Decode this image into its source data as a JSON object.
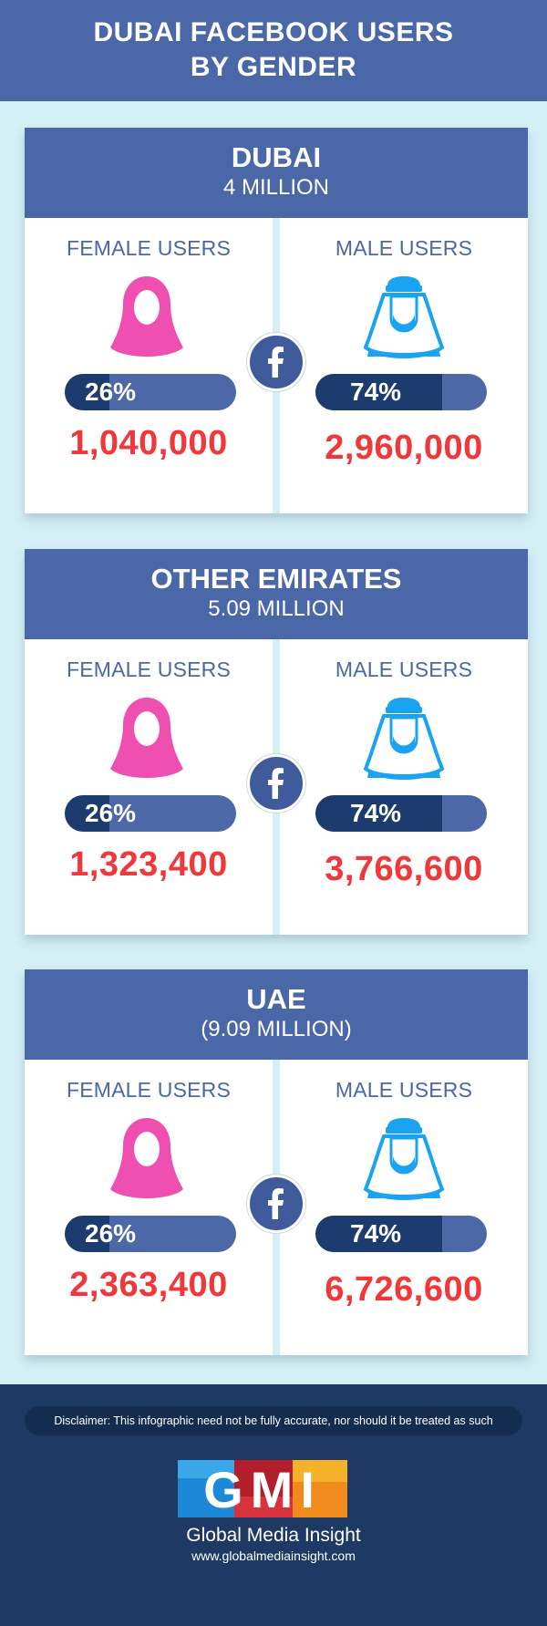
{
  "header": {
    "title_line1": "DUBAI FACEBOOK USERS",
    "title_line2": "BY GENDER"
  },
  "panels": [
    {
      "title": "DUBAI",
      "subtitle": "4 MILLION",
      "female": {
        "label": "FEMALE USERS",
        "percent": "26%",
        "fraction": 0.26,
        "count": "1,040,000"
      },
      "male": {
        "label": "MALE USERS",
        "percent": "74%",
        "fraction": 0.74,
        "count": "2,960,000"
      }
    },
    {
      "title": "OTHER EMIRATES",
      "subtitle": "5.09 MILLION",
      "female": {
        "label": "FEMALE USERS",
        "percent": "26%",
        "fraction": 0.26,
        "count": "1,323,400"
      },
      "male": {
        "label": "MALE USERS",
        "percent": "74%",
        "fraction": 0.74,
        "count": "3,766,600"
      }
    },
    {
      "title": "UAE",
      "subtitle": "(9.09 MILLION)",
      "female": {
        "label": "FEMALE USERS",
        "percent": "26%",
        "fraction": 0.26,
        "count": "2,363,400"
      },
      "male": {
        "label": "MALE USERS",
        "percent": "74%",
        "fraction": 0.74,
        "count": "6,726,600"
      }
    }
  ],
  "icons": {
    "female": "woman-hijab-icon",
    "male": "man-ghutra-icon",
    "center": "facebook-icon"
  },
  "colors": {
    "header_bg": "#4a67a8",
    "count_red": "#f0373a",
    "female_pink": "#ee4fb0",
    "male_blue": "#1aa3f0",
    "bar_dark": "#1c3b6e",
    "bar_light": "#4d68a6",
    "footer_bg": "#1e3a64"
  },
  "footer": {
    "disclaimer": "Disclaimer: This infographic need not be fully accurate, nor should it be treated as such",
    "logo_text": "GMI",
    "brand_name": "Global Media Insight",
    "url": "www.globalmediainsight.com"
  }
}
